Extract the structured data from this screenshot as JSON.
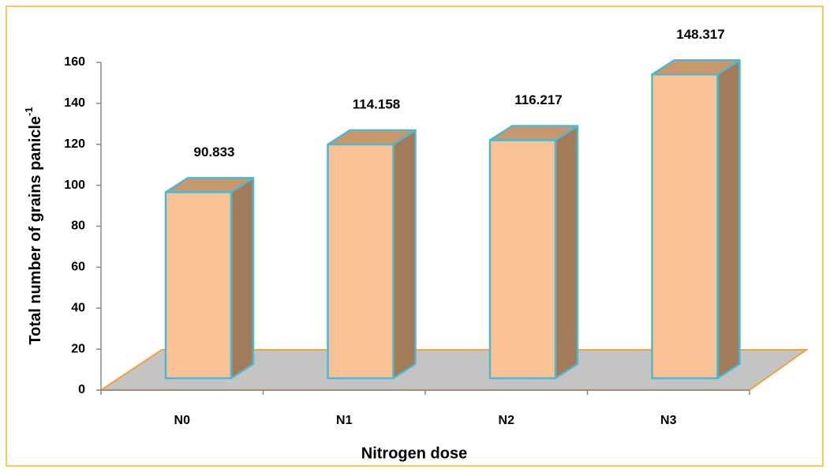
{
  "chart_data": {
    "type": "bar3d",
    "y_label": {
      "text": "Total number of  grains panicle",
      "superscript": "-1"
    },
    "x_label": "Nitrogen dose",
    "categories": [
      "N0",
      "N1",
      "N2",
      "N3"
    ],
    "values": [
      90.833,
      114.158,
      116.217,
      148.317
    ],
    "ylim": [
      0,
      160
    ],
    "yticks": [
      0,
      20,
      40,
      60,
      80,
      100,
      120,
      140,
      160
    ],
    "colors": {
      "front": "#f9c295",
      "top": "#c8976b",
      "side": "#a27b58",
      "edge": "#4fb8cf",
      "floor": "#c4c4c4",
      "floor_edge": "#f4a040"
    },
    "grid": false
  }
}
